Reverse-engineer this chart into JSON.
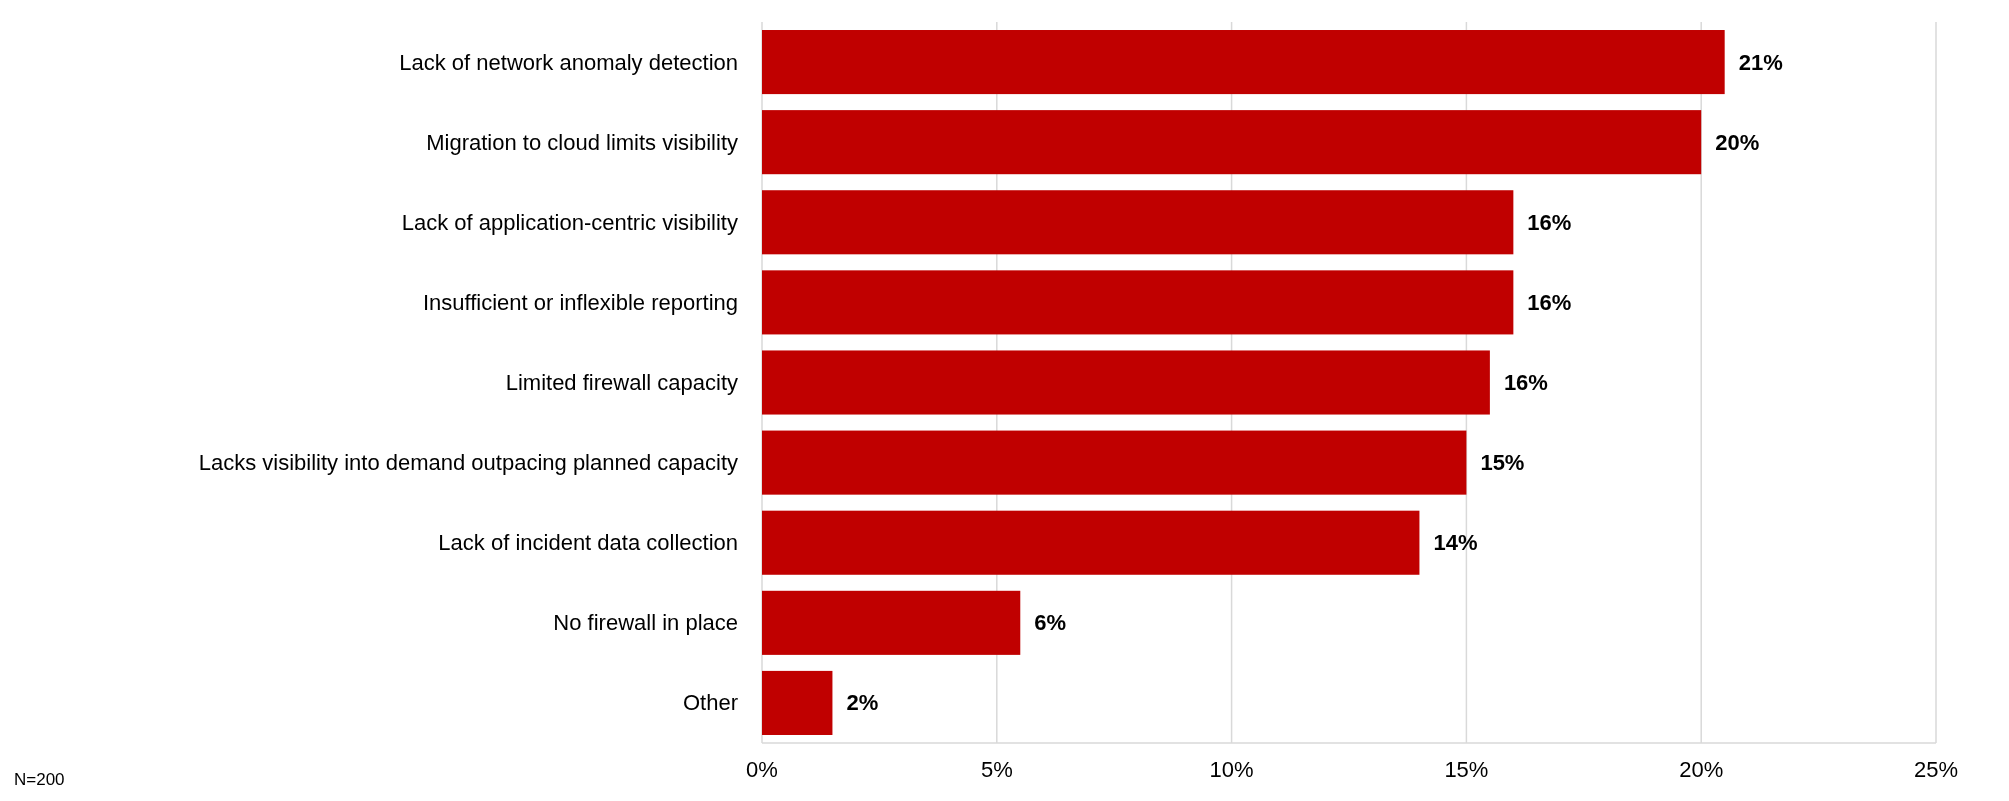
{
  "chart_data": {
    "type": "bar",
    "orientation": "horizontal",
    "categories": [
      "Lack of network anomaly detection",
      "Migration to cloud limits visibility",
      "Lack of application-centric visibility",
      "Insufficient or inflexible reporting",
      "Limited firewall capacity",
      "Lacks visibility into demand outpacing planned capacity",
      "Lack of incident data collection",
      "No firewall in place",
      "Other"
    ],
    "values": [
      20.5,
      20,
      16,
      16,
      15.5,
      15,
      14,
      5.5,
      1.5
    ],
    "value_labels": [
      "21%",
      "20%",
      "16%",
      "16%",
      "16%",
      "15%",
      "14%",
      "6%",
      "2%"
    ],
    "color": "#c00000",
    "xlim": [
      0,
      25
    ],
    "xticks": [
      {
        "value": 0,
        "label": "0%"
      },
      {
        "value": 5,
        "label": "5%"
      },
      {
        "value": 10,
        "label": "10%"
      },
      {
        "value": 15,
        "label": "15%"
      },
      {
        "value": 20,
        "label": "20%"
      },
      {
        "value": 25,
        "label": "25%"
      }
    ],
    "grid": "x",
    "annotations": [
      "N=200"
    ]
  }
}
